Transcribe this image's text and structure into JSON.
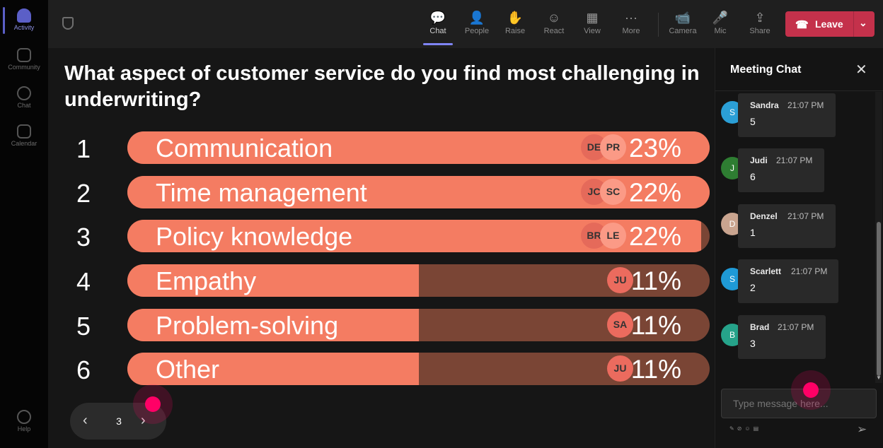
{
  "rail": {
    "items": [
      {
        "label": "Activity",
        "icon": "bell-icon"
      },
      {
        "label": "Community",
        "icon": "community-icon"
      },
      {
        "label": "Chat",
        "icon": "chat-icon"
      },
      {
        "label": "Calendar",
        "icon": "calendar-icon"
      },
      {
        "label": "Help",
        "icon": "help-icon"
      }
    ]
  },
  "toolbar": {
    "buttons": [
      {
        "label": "Chat",
        "icon": "chat-icon",
        "glyph": "💬"
      },
      {
        "label": "People",
        "icon": "people-icon",
        "glyph": "👤"
      },
      {
        "label": "Raise",
        "icon": "raise-hand-icon",
        "glyph": "✋"
      },
      {
        "label": "React",
        "icon": "react-icon",
        "glyph": "☺"
      },
      {
        "label": "View",
        "icon": "view-grid-icon",
        "glyph": "▦"
      },
      {
        "label": "More",
        "icon": "more-icon",
        "glyph": "···"
      },
      {
        "label": "Camera",
        "icon": "camera-off-icon",
        "glyph": "📹"
      },
      {
        "label": "Mic",
        "icon": "mic-icon",
        "glyph": "🎤"
      },
      {
        "label": "Share",
        "icon": "share-icon",
        "glyph": "⇪"
      }
    ],
    "leave_label": "Leave",
    "leave_color": "#c4314b"
  },
  "poll": {
    "question": "What aspect of customer service do you find most challenging in underwriting?",
    "accent": "#f47c62",
    "options": [
      {
        "num": "1",
        "label": "Communication",
        "percent": "23%",
        "fraction": 1.0,
        "voters": [
          "DE",
          "PR"
        ]
      },
      {
        "num": "2",
        "label": "Time management",
        "percent": "22%",
        "fraction": 1.0,
        "voters": [
          "JC",
          "SC"
        ]
      },
      {
        "num": "3",
        "label": "Policy knowledge",
        "percent": "22%",
        "fraction": 0.986,
        "voters": [
          "BR",
          "LE"
        ]
      },
      {
        "num": "4",
        "label": "Empathy",
        "percent": "11%",
        "fraction": 0.5,
        "voters": [
          "JU"
        ]
      },
      {
        "num": "5",
        "label": "Problem-solving",
        "percent": "11%",
        "fraction": 0.5,
        "voters": [
          "SA"
        ]
      },
      {
        "num": "6",
        "label": "Other",
        "percent": "11%",
        "fraction": 0.5,
        "voters": [
          "JU"
        ]
      }
    ]
  },
  "pager": {
    "prev": "‹",
    "page": "3",
    "next": "›"
  },
  "chat": {
    "title": "Meeting Chat",
    "close": "✕",
    "messages": [
      {
        "initial": "S",
        "name": "Sandra",
        "time": "21:07 PM",
        "text": "5",
        "color": "#2b9fd6"
      },
      {
        "initial": "J",
        "name": "Judi",
        "time": "21:07 PM",
        "text": "6",
        "color": "#2e7d32"
      },
      {
        "initial": "D",
        "name": "Denzel",
        "time": "21:07 PM",
        "text": "1",
        "color": "#c9a48f"
      },
      {
        "initial": "S",
        "name": "Scarlett",
        "time": "21:07 PM",
        "text": "2",
        "color": "#1f9ad6"
      },
      {
        "initial": "B",
        "name": "Brad",
        "time": "21:07 PM",
        "text": "3",
        "color": "#26a38a"
      }
    ],
    "input_placeholder": "Type message here...",
    "send": "➢"
  }
}
